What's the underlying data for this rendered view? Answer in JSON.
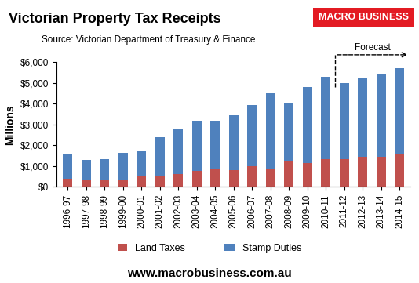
{
  "chart_data": {
    "type": "bar",
    "stacked": true,
    "title": "Victorian Property Tax Receipts",
    "subtitle": "Source: Victorian Department of Treasury & Finance",
    "y_label": "Millions",
    "logo": "MACRO BUSINESS",
    "footer": "www.macrobusiness.com.au",
    "forecast": {
      "label": "Forecast",
      "start": "2011-12"
    },
    "categories": [
      "1996-97",
      "1997-98",
      "1998-99",
      "1999-00",
      "2000-01",
      "2001-02",
      "2002-03",
      "2003-04",
      "2004-05",
      "2005-06",
      "2006-07",
      "2007-08",
      "2008-09",
      "2009-10",
      "2010-11",
      "2011-12",
      "2012-13",
      "2013-14",
      "2014-15"
    ],
    "series": [
      {
        "name": "Land Taxes",
        "color": "#c0504d",
        "values": [
          400,
          300,
          300,
          350,
          500,
          500,
          600,
          750,
          850,
          800,
          1000,
          850,
          1200,
          1150,
          1350,
          1350,
          1450,
          1450,
          1550
        ]
      },
      {
        "name": "Stamp Duties",
        "color": "#4f81bd",
        "values": [
          1200,
          1000,
          1050,
          1300,
          1250,
          1900,
          2200,
          2450,
          2350,
          2650,
          2950,
          3700,
          2850,
          3650,
          3950,
          3650,
          3800,
          3950,
          4150
        ]
      }
    ],
    "ylim": [
      0,
      6000
    ],
    "yticks": [
      {
        "value": 0,
        "label": "$0"
      },
      {
        "value": 1000,
        "label": "$1,000"
      },
      {
        "value": 2000,
        "label": "$2,000"
      },
      {
        "value": 3000,
        "label": "$3,000"
      },
      {
        "value": 4000,
        "label": "$4,000"
      },
      {
        "value": 5000,
        "label": "$5,000"
      },
      {
        "value": 6000,
        "label": "$6,000"
      }
    ],
    "grid": false,
    "legend": "lower center"
  }
}
